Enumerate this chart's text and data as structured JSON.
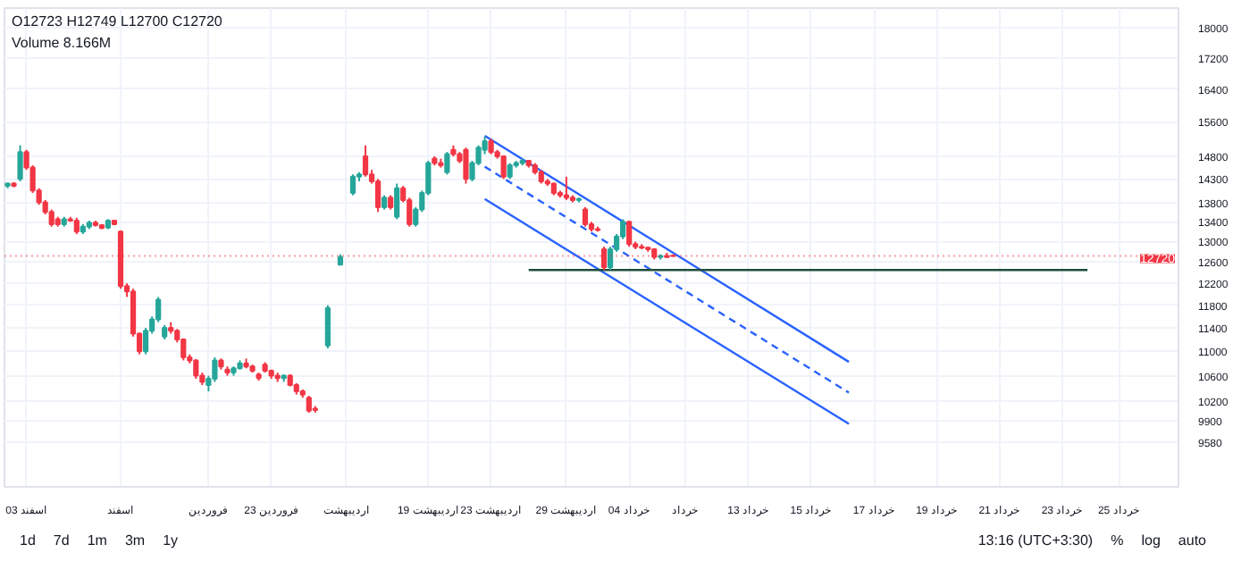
{
  "chart_data": {
    "type": "candlestick",
    "log": "y",
    "grid": true,
    "categories": [
      null,
      null,
      null,
      "03 اسفند",
      null,
      null,
      null,
      null,
      null,
      null,
      null,
      null,
      null,
      null,
      null,
      null,
      null,
      null,
      "اسفند",
      null,
      null,
      null,
      null,
      null,
      null,
      null,
      null,
      null,
      null,
      null,
      null,
      null,
      "فروردین",
      null,
      null,
      null,
      null,
      null,
      null,
      null,
      null,
      null,
      "23 فروردین",
      null,
      null,
      null,
      null,
      null,
      null,
      null,
      null,
      null,
      null,
      null,
      "اردیبهشت",
      null,
      null,
      null,
      null,
      null,
      null,
      null,
      null,
      null,
      null,
      null,
      null,
      "19 اردیبهشت",
      null,
      null,
      null,
      null,
      null,
      null,
      null,
      null,
      null,
      "23 اردیبهشت",
      null,
      null,
      null,
      null,
      null,
      null,
      null,
      null,
      null,
      null,
      null,
      "29 اردیبهشت",
      null,
      null,
      null,
      null,
      null,
      null,
      null,
      null,
      null,
      "04 خرداد",
      null,
      null,
      null,
      null,
      null,
      null,
      null,
      null,
      "خرداد",
      null,
      null,
      null,
      null,
      null,
      null,
      null,
      null,
      null,
      "13 خرداد",
      null,
      null,
      null,
      null,
      null,
      null,
      null,
      null,
      null,
      "15 خرداد",
      null,
      null,
      null,
      null,
      null,
      null,
      null,
      null,
      null,
      "17 خرداد",
      null,
      null,
      null,
      null,
      null,
      null,
      null,
      null,
      null,
      "19 خرداد",
      null,
      null,
      null,
      null,
      null,
      null,
      null,
      null,
      null,
      "21 خرداد",
      null,
      null,
      null,
      null,
      null,
      null,
      null,
      null,
      null,
      "23 خرداد",
      null,
      null,
      null,
      null,
      null,
      null,
      null,
      null,
      "25 خرداد",
      null,
      null,
      null,
      null,
      null,
      null,
      null,
      null,
      null
    ],
    "ohlc": [
      [
        14150,
        14220,
        14100,
        14200
      ],
      [
        14200,
        14230,
        14120,
        14150
      ],
      [
        14300,
        15050,
        14250,
        14900
      ],
      [
        14900,
        14950,
        14500,
        14550
      ],
      [
        14550,
        14600,
        14000,
        14050
      ],
      [
        14050,
        14100,
        13750,
        13800
      ],
      [
        13800,
        13850,
        13550,
        13600
      ],
      [
        13600,
        13650,
        13300,
        13350
      ],
      [
        13450,
        13500,
        13300,
        13350
      ],
      [
        13350,
        13500,
        13300,
        13450
      ],
      [
        13450,
        13500,
        13400,
        13420
      ],
      [
        13420,
        13480,
        13150,
        13200
      ],
      [
        13200,
        13350,
        13150,
        13300
      ],
      [
        13300,
        13420,
        13250,
        13380
      ],
      [
        13380,
        13420,
        13300,
        13330
      ],
      [
        13330,
        13350,
        13250,
        13270
      ],
      [
        13280,
        13450,
        13250,
        13420
      ],
      [
        13420,
        13440,
        13330,
        13350
      ],
      [
        13200,
        13220,
        12100,
        12150
      ],
      [
        12150,
        12200,
        11950,
        12050
      ],
      [
        12050,
        12100,
        11250,
        11300
      ],
      [
        11300,
        11320,
        10950,
        11000
      ],
      [
        11000,
        11400,
        10950,
        11350
      ],
      [
        11350,
        11600,
        11300,
        11550
      ],
      [
        11550,
        11950,
        11500,
        11900
      ],
      [
        11250,
        11450,
        11200,
        11400
      ],
      [
        11400,
        11500,
        11300,
        11350
      ],
      [
        11350,
        11380,
        11150,
        11200
      ],
      [
        11200,
        11220,
        10850,
        10900
      ],
      [
        10900,
        10950,
        10800,
        10850
      ],
      [
        10850,
        10870,
        10550,
        10600
      ],
      [
        10600,
        10650,
        10450,
        10500
      ],
      [
        10450,
        10600,
        10350,
        10550
      ],
      [
        10550,
        10900,
        10500,
        10850
      ],
      [
        10850,
        10880,
        10700,
        10750
      ],
      [
        10700,
        10750,
        10600,
        10650
      ],
      [
        10650,
        10750,
        10600,
        10720
      ],
      [
        10720,
        10850,
        10700,
        10800
      ],
      [
        10800,
        10880,
        10720,
        10750
      ],
      [
        10750,
        10780,
        10650,
        10680
      ],
      [
        10620,
        10650,
        10520,
        10560
      ],
      [
        10780,
        10820,
        10650,
        10680
      ],
      [
        10680,
        10700,
        10550,
        10600
      ],
      [
        10600,
        10650,
        10500,
        10560
      ],
      [
        10560,
        10620,
        10500,
        10600
      ],
      [
        10600,
        10620,
        10430,
        10450
      ],
      [
        10450,
        10480,
        10300,
        10350
      ],
      [
        10350,
        10380,
        10250,
        10300
      ],
      [
        10250,
        10280,
        10020,
        10050
      ],
      [
        10080,
        10120,
        10020,
        10060
      ],
      null,
      [
        11100,
        11800,
        11050,
        11750
      ],
      null,
      [
        12550,
        12750,
        12550,
        12700
      ],
      null,
      [
        14000,
        14400,
        13950,
        14350
      ],
      [
        14350,
        14450,
        14250,
        14400
      ],
      [
        14800,
        15050,
        14350,
        14400
      ],
      [
        14400,
        14500,
        14200,
        14250
      ],
      [
        14250,
        14300,
        13600,
        13700
      ],
      [
        13700,
        13950,
        13650,
        13900
      ],
      [
        13900,
        13950,
        13650,
        13700
      ],
      [
        13500,
        14200,
        13450,
        14100
      ],
      [
        14100,
        14150,
        13800,
        13850
      ],
      [
        13850,
        13900,
        13300,
        13350
      ],
      [
        13350,
        13700,
        13300,
        13650
      ],
      [
        13650,
        14050,
        13600,
        14000
      ],
      [
        14000,
        14700,
        13950,
        14650
      ],
      [
        14750,
        14800,
        14600,
        14650
      ],
      [
        14650,
        14750,
        14550,
        14600
      ],
      [
        14450,
        14900,
        14400,
        14850
      ],
      [
        14950,
        15050,
        14800,
        14850
      ],
      [
        14850,
        14900,
        14650,
        14700
      ],
      [
        14950,
        15000,
        14200,
        14300
      ],
      [
        14300,
        14700,
        14250,
        14650
      ],
      [
        14650,
        15050,
        14600,
        15000
      ],
      [
        14950,
        15250,
        14850,
        15150
      ],
      [
        15150,
        15200,
        14850,
        14900
      ],
      [
        14900,
        14950,
        14750,
        14800
      ],
      [
        14800,
        14820,
        14300,
        14350
      ],
      [
        14350,
        14650,
        14300,
        14600
      ],
      [
        14600,
        14700,
        14550,
        14650
      ],
      [
        14650,
        14750,
        14600,
        14700
      ],
      [
        14700,
        14720,
        14550,
        14600
      ],
      [
        14600,
        14650,
        14400,
        14450
      ],
      [
        14450,
        14500,
        14200,
        14250
      ],
      [
        14250,
        14300,
        14150,
        14200
      ],
      [
        14200,
        14220,
        13950,
        14000
      ],
      [
        14000,
        14050,
        13900,
        13950
      ],
      [
        13950,
        14350,
        13850,
        13900
      ],
      [
        13900,
        13950,
        13800,
        13850
      ],
      [
        13850,
        13900,
        13800,
        13870
      ],
      [
        13650,
        13700,
        13300,
        13350
      ],
      [
        13350,
        13400,
        13200,
        13250
      ],
      [
        13250,
        13300,
        13200,
        13230
      ],
      [
        12850,
        12900,
        12450,
        12500
      ],
      [
        12500,
        12900,
        12450,
        12850
      ],
      [
        12850,
        13150,
        12800,
        13100
      ],
      [
        13100,
        13450,
        13050,
        13400
      ],
      [
        13400,
        13420,
        12900,
        12950
      ],
      [
        12950,
        13000,
        12850,
        12900
      ],
      [
        12900,
        12950,
        12850,
        12880
      ],
      [
        12880,
        12900,
        12800,
        12850
      ],
      [
        12850,
        12870,
        12650,
        12700
      ],
      [
        12700,
        12750,
        12650,
        12720
      ],
      [
        12720,
        12780,
        12680,
        12700
      ],
      [
        12723,
        12749,
        12700,
        12720
      ],
      null,
      null,
      null,
      null,
      null,
      null,
      null,
      null,
      null,
      null,
      null,
      null,
      null,
      null,
      null,
      null,
      null,
      null,
      null,
      null,
      null,
      null,
      null,
      null,
      null,
      null,
      null,
      null,
      null,
      null,
      null,
      null,
      null,
      null,
      null,
      null,
      null,
      null,
      null,
      null,
      null,
      null,
      null,
      null,
      null,
      null,
      null,
      null,
      null,
      null,
      null,
      null,
      null,
      null,
      null,
      null,
      null,
      null,
      null,
      null,
      null,
      null,
      null,
      null,
      null,
      null,
      null,
      null,
      null,
      null,
      null,
      null,
      null,
      null,
      null,
      null,
      null,
      null,
      null,
      null
    ],
    "series": [
      {
        "type": "line",
        "color": "#2962ff",
        "values": [
          null,
          null,
          null,
          null,
          null,
          null,
          null,
          null,
          null,
          null,
          null,
          null,
          null,
          null,
          null,
          null,
          null,
          null,
          null,
          null,
          null,
          null,
          null,
          null,
          null,
          null,
          null,
          null,
          null,
          null,
          null,
          null,
          null,
          null,
          null,
          null,
          null,
          null,
          null,
          null,
          null,
          null,
          null,
          null,
          null,
          null,
          null,
          null,
          null,
          null,
          null,
          null,
          null,
          null,
          null,
          null,
          null,
          null,
          null,
          null,
          null,
          null,
          null,
          null,
          null,
          null,
          null,
          null,
          null,
          null,
          null,
          null,
          null,
          null,
          null,
          null,
          15270,
          null,
          null,
          null,
          null,
          null,
          null,
          null,
          null,
          null,
          null,
          null,
          null,
          null,
          null,
          null,
          null,
          null,
          null,
          null,
          null,
          null,
          null,
          null,
          null,
          null,
          null,
          null,
          null,
          null,
          null,
          null,
          null,
          null,
          null,
          null,
          null,
          null,
          null,
          null,
          null,
          null,
          null,
          null,
          null,
          null,
          null,
          null,
          null,
          null,
          null,
          null,
          null,
          null,
          null,
          null,
          null,
          null,
          10825,
          null,
          null,
          null,
          null,
          null,
          null,
          null,
          null,
          null,
          null,
          null,
          null,
          null,
          null,
          null,
          null,
          null,
          null,
          null,
          null,
          null,
          null,
          null,
          null,
          null,
          null,
          null,
          null,
          null,
          null,
          null,
          null,
          null,
          null,
          null,
          null,
          null,
          null,
          null,
          null,
          null,
          null,
          null,
          null,
          null,
          null,
          null,
          null,
          null,
          null,
          null,
          null
        ]
      },
      {
        "type": "line",
        "color": "#2962ff",
        "line_style": "dashed",
        "values": [
          null,
          null,
          null,
          null,
          null,
          null,
          null,
          null,
          null,
          null,
          null,
          null,
          null,
          null,
          null,
          null,
          null,
          null,
          null,
          null,
          null,
          null,
          null,
          null,
          null,
          null,
          null,
          null,
          null,
          null,
          null,
          null,
          null,
          null,
          null,
          null,
          null,
          null,
          null,
          null,
          null,
          null,
          null,
          null,
          null,
          null,
          null,
          null,
          null,
          null,
          null,
          null,
          null,
          null,
          null,
          null,
          null,
          null,
          null,
          null,
          null,
          null,
          null,
          null,
          null,
          null,
          null,
          null,
          null,
          null,
          null,
          null,
          null,
          null,
          null,
          null,
          14570,
          null,
          null,
          null,
          null,
          null,
          null,
          null,
          null,
          null,
          null,
          null,
          null,
          null,
          null,
          null,
          null,
          null,
          null,
          null,
          null,
          null,
          null,
          null,
          null,
          null,
          null,
          null,
          null,
          null,
          null,
          null,
          null,
          null,
          null,
          null,
          null,
          null,
          null,
          null,
          null,
          null,
          null,
          null,
          null,
          null,
          null,
          null,
          null,
          null,
          null,
          null,
          null,
          null,
          null,
          null,
          null,
          null,
          10330,
          null,
          null,
          null,
          null,
          null,
          null,
          null,
          null,
          null,
          null,
          null,
          null,
          null,
          null,
          null,
          null,
          null,
          null,
          null,
          null,
          null,
          null,
          null,
          null,
          null,
          null,
          null,
          null,
          null,
          null,
          null,
          null,
          null,
          null,
          null,
          null,
          null,
          null,
          null,
          null,
          null,
          null,
          null,
          null,
          null,
          null,
          null,
          null,
          null,
          null,
          null,
          null
        ]
      },
      {
        "type": "line",
        "color": "#2962ff",
        "values": [
          null,
          null,
          null,
          null,
          null,
          null,
          null,
          null,
          null,
          null,
          null,
          null,
          null,
          null,
          null,
          null,
          null,
          null,
          null,
          null,
          null,
          null,
          null,
          null,
          null,
          null,
          null,
          null,
          null,
          null,
          null,
          null,
          null,
          null,
          null,
          null,
          null,
          null,
          null,
          null,
          null,
          null,
          null,
          null,
          null,
          null,
          null,
          null,
          null,
          null,
          null,
          null,
          null,
          null,
          null,
          null,
          null,
          null,
          null,
          null,
          null,
          null,
          null,
          null,
          null,
          null,
          null,
          null,
          null,
          null,
          null,
          null,
          null,
          null,
          null,
          null,
          13870,
          null,
          null,
          null,
          null,
          null,
          null,
          null,
          null,
          null,
          null,
          null,
          null,
          null,
          null,
          null,
          null,
          null,
          null,
          null,
          null,
          null,
          null,
          null,
          null,
          null,
          null,
          null,
          null,
          null,
          null,
          null,
          null,
          null,
          null,
          null,
          null,
          null,
          null,
          null,
          null,
          null,
          null,
          null,
          null,
          null,
          null,
          null,
          null,
          null,
          null,
          null,
          null,
          null,
          null,
          null,
          null,
          null,
          9850,
          null,
          null,
          null,
          null,
          null,
          null,
          null,
          null,
          null,
          null,
          null,
          null,
          null,
          null,
          null,
          null,
          null,
          null,
          null,
          null,
          null,
          null,
          null,
          null,
          null,
          null,
          null,
          null,
          null,
          null,
          null,
          null,
          null,
          null,
          null,
          null,
          null,
          null,
          null,
          null,
          null,
          null,
          null,
          null,
          null,
          null,
          null,
          null,
          null,
          null,
          null,
          null
        ]
      },
      {
        "type": "line",
        "color": "#1e4d3a",
        "values": [
          null,
          null,
          null,
          null,
          null,
          null,
          null,
          null,
          null,
          null,
          null,
          null,
          null,
          null,
          null,
          null,
          null,
          null,
          null,
          null,
          null,
          null,
          null,
          null,
          null,
          null,
          null,
          null,
          null,
          null,
          null,
          null,
          null,
          null,
          null,
          null,
          null,
          null,
          null,
          null,
          null,
          null,
          null,
          null,
          null,
          null,
          null,
          null,
          null,
          null,
          null,
          null,
          null,
          null,
          null,
          null,
          null,
          null,
          null,
          null,
          null,
          null,
          null,
          null,
          null,
          null,
          null,
          null,
          null,
          null,
          null,
          null,
          null,
          null,
          null,
          null,
          null,
          null,
          null,
          null,
          null,
          null,
          null,
          12450,
          null,
          null,
          null,
          null,
          null,
          null,
          null,
          null,
          null,
          null,
          null,
          null,
          null,
          null,
          null,
          null,
          null,
          null,
          null,
          null,
          null,
          null,
          null,
          null,
          null,
          null,
          null,
          null,
          null,
          null,
          null,
          null,
          null,
          null,
          null,
          null,
          null,
          null,
          null,
          null,
          null,
          null,
          null,
          null,
          null,
          null,
          null,
          null,
          null,
          null,
          null,
          null,
          null,
          null,
          null,
          null,
          null,
          null,
          null,
          null,
          null,
          null,
          null,
          null,
          null,
          null,
          null,
          null,
          null,
          null,
          null,
          null,
          null,
          null,
          null,
          null,
          null,
          null,
          null,
          null,
          null,
          null,
          null,
          null,
          null,
          null,
          null,
          null,
          12450,
          null,
          null,
          null,
          null,
          null,
          null,
          null,
          null,
          null,
          null,
          null,
          null,
          null,
          null
        ]
      }
    ],
    "ref_lines": [
      {
        "axis": "y",
        "value": 12720,
        "label": "12720",
        "color": "#f23645",
        "line_style": "dotted"
      }
    ],
    "ylim": [
      8950,
      18550
    ],
    "yticks": [
      9580,
      9900,
      10200,
      10600,
      11000,
      11400,
      11800,
      12200,
      12600,
      13000,
      13400,
      13800,
      14300,
      14800,
      15600,
      16400,
      17200,
      18000
    ],
    "annotations": [
      "O12723 H12749 L12700 C12720",
      "Volume 8.166M",
      "1d",
      "7d",
      "1m",
      "3m",
      "1y",
      "13:16 (UTC+3:30)",
      "%",
      "log",
      "auto"
    ]
  }
}
